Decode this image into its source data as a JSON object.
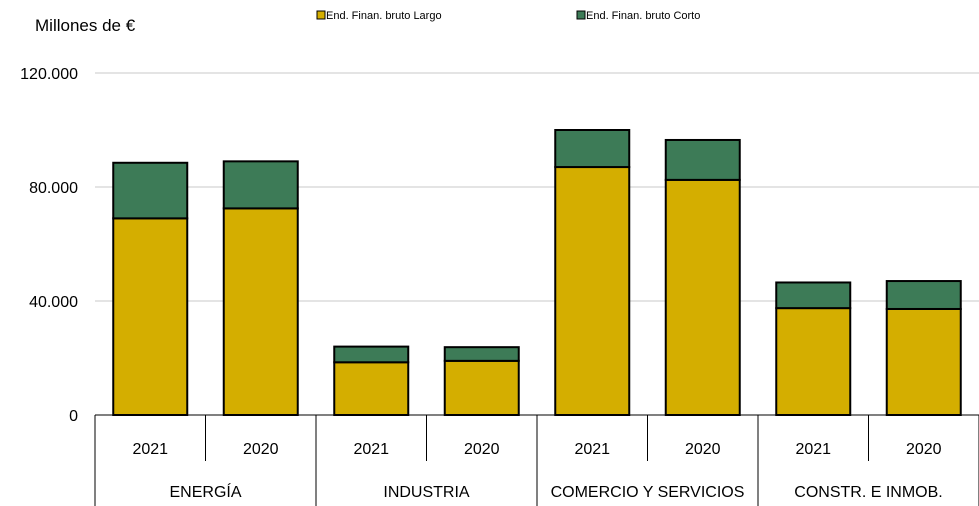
{
  "chart_data": {
    "type": "bar",
    "stacked": true,
    "unit_label": "Millones de €",
    "groups": [
      "ENERGÍA",
      "INDUSTRIA",
      "COMERCIO Y SERVICIOS",
      "CONSTR. E INMOB."
    ],
    "categories": [
      "2021",
      "2020",
      "2021",
      "2020",
      "2021",
      "2020",
      "2021",
      "2020"
    ],
    "category_group": [
      0,
      0,
      1,
      1,
      2,
      2,
      3,
      3
    ],
    "series": [
      {
        "name": "End. Finan. bruto Largo",
        "color": "#d4ae00",
        "values": [
          69000,
          72500,
          18500,
          19000,
          87000,
          82500,
          37500,
          37200
        ]
      },
      {
        "name": "End. Finan. bruto  Corto",
        "color": "#3d7b57",
        "values": [
          19500,
          16500,
          5500,
          4800,
          13000,
          14000,
          9000,
          9800
        ]
      }
    ],
    "y_ticks": [
      "0",
      "40.000",
      "80.000",
      "120.000"
    ],
    "y_tick_values": [
      0,
      40000,
      80000,
      120000
    ],
    "ylim": [
      0,
      120000
    ],
    "grid": true,
    "legend_position": "top"
  }
}
